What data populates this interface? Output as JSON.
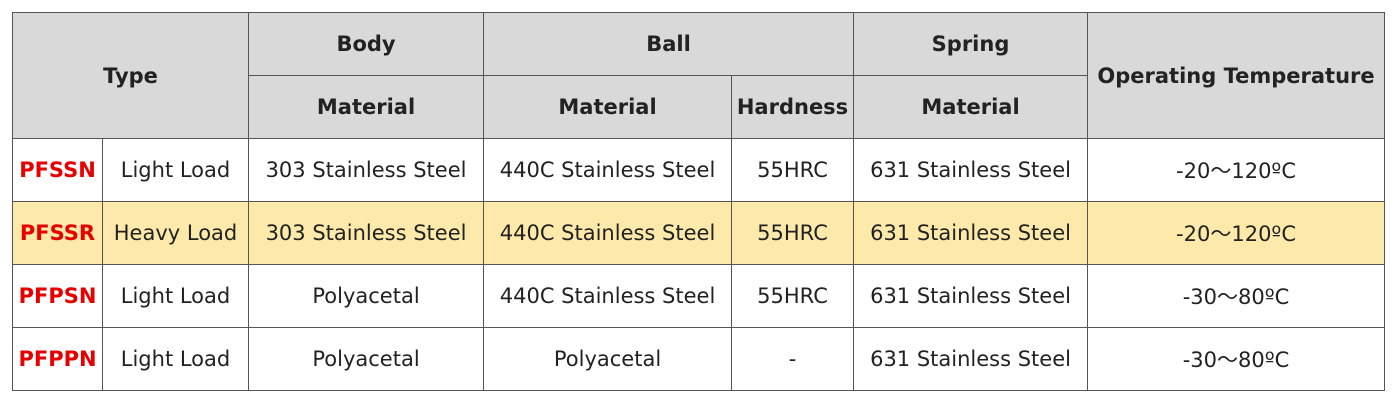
{
  "header": {
    "type": "Type",
    "body": "Body",
    "ball": "Ball",
    "spring": "Spring",
    "temperature": "Operating Temperature",
    "body_material": "Material",
    "ball_material": "Material",
    "ball_hardness": "Hardness",
    "spring_material": "Material"
  },
  "table": {
    "rows": [
      [
        "PFSSN",
        "Light Load",
        "303 Stainless Steel",
        "440C Stainless Steel",
        "55HRC",
        "631 Stainless Steel",
        "-20～120ºC"
      ],
      [
        "PFSSR",
        "Heavy Load",
        "303 Stainless Steel",
        "440C Stainless Steel",
        "55HRC",
        "631 Stainless Steel",
        "-20～120ºC"
      ],
      [
        "PFPSN",
        "Light Load",
        "Polyacetal",
        "440C Stainless Steel",
        "55HRC",
        "631 Stainless Steel",
        "-30～80ºC"
      ],
      [
        "PFPPN",
        "Light Load",
        "Polyacetal",
        "Polyacetal",
        "-",
        "631 Stainless Steel",
        "-30～80ºC"
      ]
    ],
    "highlighted_row": 1
  }
}
